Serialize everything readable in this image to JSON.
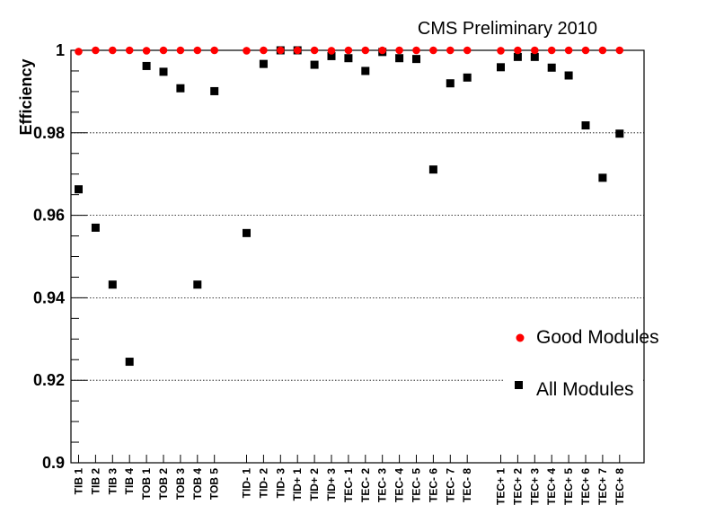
{
  "chart_data": {
    "type": "scatter",
    "title": "CMS Preliminary 2010",
    "ylabel": "Efficiency",
    "xlabel": "",
    "ylim": [
      0.9,
      1.0
    ],
    "y_ticks": [
      "0.9",
      "0.92",
      "0.94",
      "0.96",
      "0.98",
      "1"
    ],
    "y_tick_values": [
      0.9,
      0.92,
      0.94,
      0.96,
      0.98,
      1.0
    ],
    "grid": "horizontal dotted",
    "legend_position": "right",
    "categories": [
      "TIB  1",
      "TIB  2",
      "TIB  3",
      "TIB  4",
      "TOB  1",
      "TOB  2",
      "TOB  3",
      "TOB  4",
      "TOB  5",
      "TID- 1",
      "TID- 2",
      "TID- 3",
      "TID+ 1",
      "TID+ 2",
      "TID+ 3",
      "TEC- 1",
      "TEC- 2",
      "TEC- 3",
      "TEC- 4",
      "TEC- 5",
      "TEC- 6",
      "TEC- 7",
      "TEC- 8",
      "TEC+ 1",
      "TEC+ 2",
      "TEC+ 3",
      "TEC+ 4",
      "TEC+ 5",
      "TEC+ 6",
      "TEC+ 7",
      "TEC+ 8"
    ],
    "series": [
      {
        "name": "Good Modules",
        "marker": "circle",
        "color": "#ff0000",
        "values": [
          0.9997,
          1.0,
          1.0,
          1.0,
          0.9999,
          1.0,
          1.0,
          1.0,
          1.0,
          0.9999,
          1.0,
          1.0,
          1.0,
          1.0,
          0.9999,
          1.0,
          1.0,
          1.0,
          1.0,
          1.0,
          1.0,
          1.0,
          1.0,
          0.9999,
          1.0,
          1.0,
          1.0,
          1.0,
          1.0,
          1.0,
          1.0
        ]
      },
      {
        "name": "All Modules",
        "marker": "square",
        "color": "#000000",
        "values": [
          0.9663,
          0.957,
          0.9432,
          0.9245,
          0.9962,
          0.9948,
          0.9908,
          0.9432,
          0.9901,
          0.9557,
          0.9967,
          1.0,
          1.0,
          0.9965,
          0.9986,
          0.9981,
          0.995,
          0.9996,
          0.9981,
          0.9979,
          0.9711,
          0.992,
          0.9934,
          0.9959,
          0.9984,
          0.9984,
          0.9958,
          0.9939,
          0.9818,
          0.9691,
          0.9798
        ]
      }
    ]
  }
}
